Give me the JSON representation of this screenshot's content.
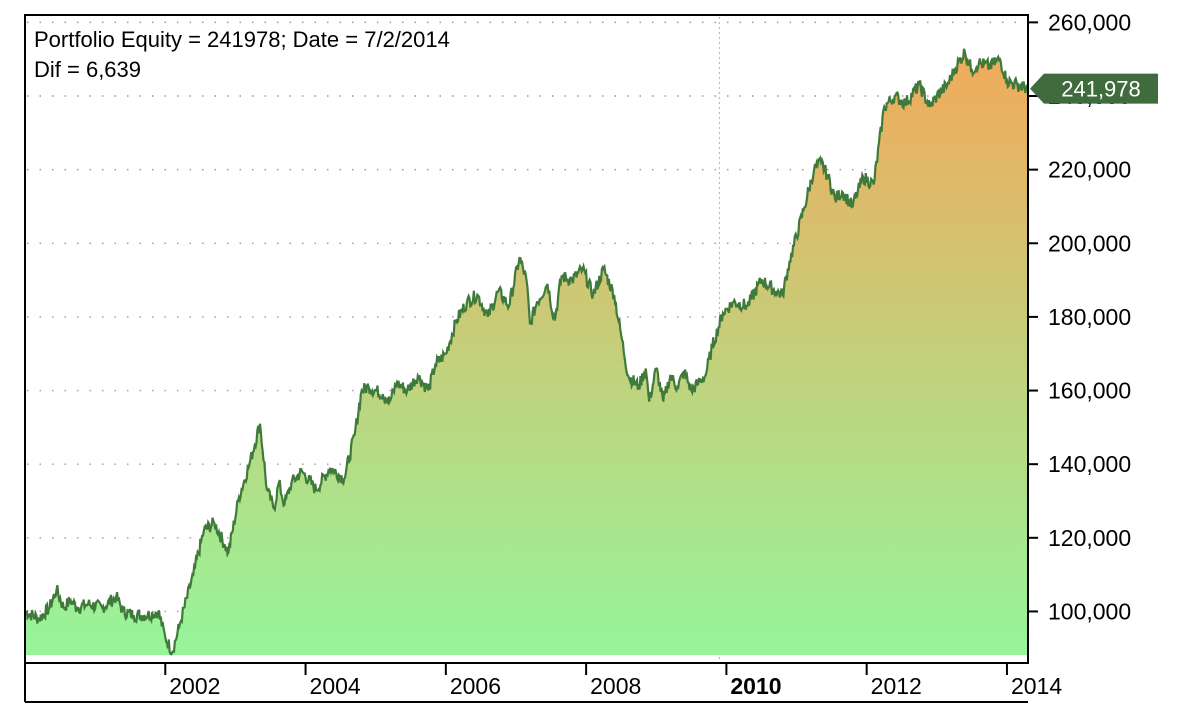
{
  "header": {
    "line1": "Portfolio Equity = 241978; Date = 7/2/2014",
    "line2": "Dif = 6,639"
  },
  "chart_data": {
    "type": "area",
    "title": "",
    "xlabel": "",
    "ylabel": "",
    "ylim": [
      86000,
      262000
    ],
    "xlim": [
      2000.0,
      2014.3
    ],
    "grid": true,
    "y_axis_side": "right",
    "y_ticks": [
      100000,
      120000,
      140000,
      160000,
      180000,
      200000,
      220000,
      240000,
      260000
    ],
    "y_tick_labels": [
      "100,000",
      "120,000",
      "140,000",
      "160,000",
      "180,000",
      "200,000",
      "220,000",
      "240,000",
      "260,000"
    ],
    "x_ticks": [
      2002,
      2004,
      2006,
      2008,
      2010,
      2012,
      2014
    ],
    "x_tick_labels": [
      "2002",
      "2004",
      "2006",
      "2008",
      "2010",
      "2012",
      "2014"
    ],
    "x_tick_bold": [
      false,
      false,
      false,
      false,
      true,
      false,
      false
    ],
    "cursor_x": 2009.9,
    "last_value_label": "241,978",
    "series": [
      {
        "x": [
          2000.0,
          2000.2,
          2000.35,
          2000.45,
          2000.55,
          2000.65,
          2000.75,
          2000.9,
          2001.1,
          2001.3,
          2001.4,
          2001.55,
          2001.75,
          2001.9,
          2002.0,
          2002.1,
          2002.2,
          2002.4,
          2002.55,
          2002.7,
          2002.85,
          2002.9,
          2003.05,
          2003.2,
          2003.35,
          2003.45,
          2003.55,
          2003.62,
          2003.7,
          2003.8,
          2003.95,
          2004.15,
          2004.35,
          2004.55,
          2004.7,
          2004.8,
          2004.9,
          2005.1,
          2005.2,
          2005.3,
          2005.45,
          2005.6,
          2005.75,
          2005.85,
          2006.0,
          2006.15,
          2006.3,
          2006.45,
          2006.6,
          2006.75,
          2006.9,
          2007.05,
          2007.15,
          2007.2,
          2007.3,
          2007.45,
          2007.55,
          2007.65,
          2007.8,
          2007.95,
          2008.1,
          2008.25,
          2008.4,
          2008.5,
          2008.6,
          2008.75,
          2008.85,
          2008.9,
          2009.0,
          2009.1,
          2009.2,
          2009.3,
          2009.4,
          2009.5,
          2009.6,
          2009.7,
          2009.8,
          2009.95,
          2010.1,
          2010.3,
          2010.5,
          2010.7,
          2010.8,
          2010.9,
          2011.1,
          2011.25,
          2011.35,
          2011.45,
          2011.55,
          2011.65,
          2011.8,
          2011.95,
          2012.1,
          2012.25,
          2012.4,
          2012.55,
          2012.75,
          2012.9,
          2013.0,
          2013.15,
          2013.25,
          2013.4,
          2013.5,
          2013.6,
          2013.75,
          2013.9,
          2014.0,
          2014.15,
          2014.3
        ],
        "y": [
          100000,
          98000,
          101000,
          106000,
          101000,
          103000,
          101000,
          102000,
          101000,
          104000,
          100000,
          99000,
          99000,
          100000,
          93000,
          89000,
          96000,
          110000,
          122000,
          124000,
          118000,
          116000,
          131000,
          140000,
          151000,
          133000,
          128000,
          135000,
          129000,
          135000,
          138000,
          133000,
          139000,
          136000,
          148000,
          160000,
          161000,
          159000,
          157000,
          162000,
          160000,
          164000,
          160000,
          167000,
          170000,
          179000,
          184000,
          186000,
          180000,
          187000,
          183000,
          196000,
          190000,
          178000,
          184000,
          189000,
          179000,
          191000,
          190000,
          193000,
          186000,
          193000,
          186000,
          175000,
          164000,
          161000,
          166000,
          157000,
          166000,
          157000,
          164000,
          161000,
          165000,
          160000,
          162000,
          164000,
          172000,
          181000,
          184000,
          183000,
          190000,
          187000,
          186000,
          195000,
          209000,
          220000,
          222000,
          218000,
          212000,
          214000,
          210000,
          218000,
          216000,
          237000,
          240000,
          238000,
          243000,
          237000,
          240000,
          243000,
          247000,
          252000,
          247000,
          249000,
          248000,
          250000,
          244000,
          243000,
          242000
        ]
      }
    ],
    "colors": {
      "line": "#3f7a3a",
      "fill_top": "#f2a95b",
      "fill_bottom": "#96f59a",
      "marker_bg": "#3f6b3d",
      "grid": "#9a9a9a",
      "cursor": "#b0b0b0"
    }
  }
}
